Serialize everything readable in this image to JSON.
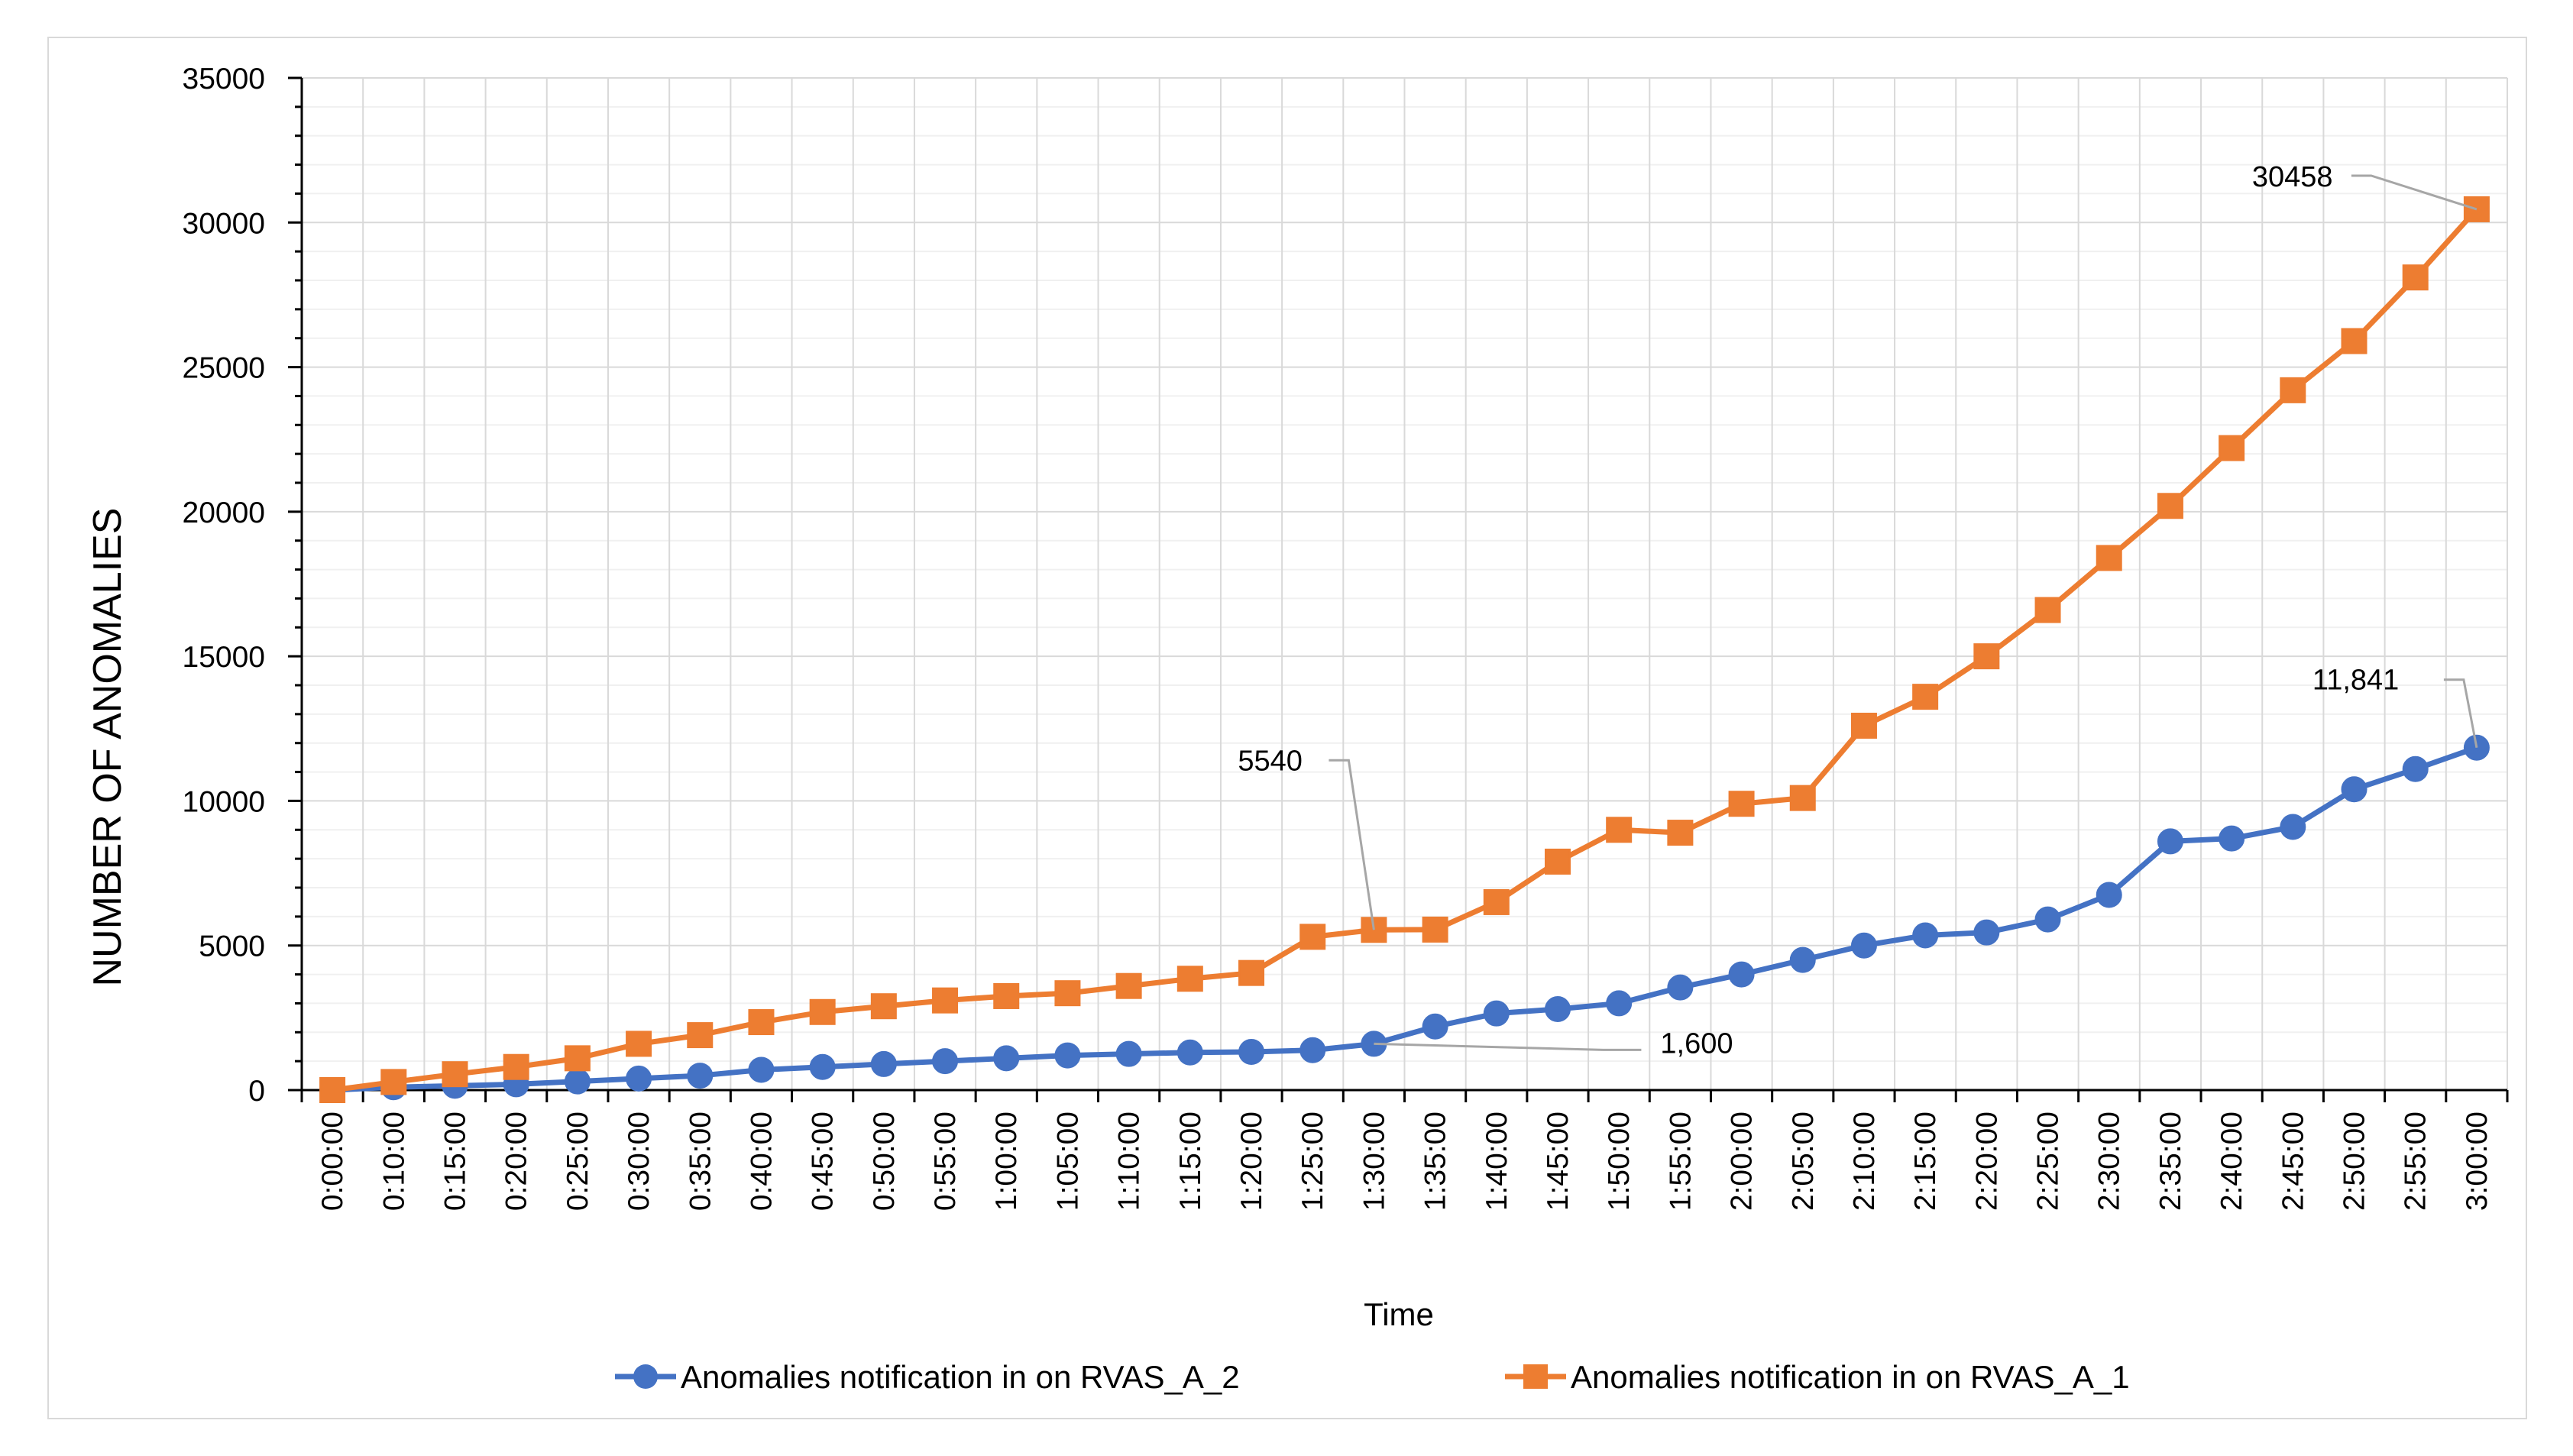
{
  "chart_data": {
    "type": "line",
    "title": "",
    "xlabel": "Time",
    "ylabel": "NUMBER OF ANOMALIES",
    "ylim": [
      0,
      35000
    ],
    "yticks": [
      "0",
      "5000",
      "10000",
      "15000",
      "20000",
      "25000",
      "30000",
      "35000"
    ],
    "categories": [
      "0:00:00",
      "0:10:00",
      "0:15:00",
      "0:20:00",
      "0:25:00",
      "0:30:00",
      "0:35:00",
      "0:40:00",
      "0:45:00",
      "0:50:00",
      "0:55:00",
      "1:00:00",
      "1:05:00",
      "1:10:00",
      "1:15:00",
      "1:20:00",
      "1:25:00",
      "1:30:00",
      "1:35:00",
      "1:40:00",
      "1:45:00",
      "1:50:00",
      "1:55:00",
      "2:00:00",
      "2:05:00",
      "2:10:00",
      "2:15:00",
      "2:20:00",
      "2:25:00",
      "2:30:00",
      "2:35:00",
      "2:40:00",
      "2:45:00",
      "2:50:00",
      "2:55:00",
      "3:00:00"
    ],
    "grid": true,
    "legend_position": "bottom",
    "series": [
      {
        "name": "Anomalies notification in on RVAS_A_2",
        "color": "#4472c4",
        "marker": "circle",
        "values": [
          0,
          100,
          150,
          200,
          300,
          400,
          500,
          700,
          800,
          900,
          1000,
          1100,
          1200,
          1250,
          1300,
          1320,
          1380,
          1600,
          2200,
          2650,
          2800,
          3000,
          3550,
          4000,
          4500,
          5000,
          5350,
          5450,
          5900,
          6750,
          8600,
          8700,
          9100,
          10400,
          11100,
          11841
        ]
      },
      {
        "name": "Anomalies notification in on RVAS_A_1",
        "color": "#ed7d31",
        "marker": "square",
        "values": [
          0,
          280,
          550,
          800,
          1100,
          1600,
          1900,
          2350,
          2700,
          2900,
          3100,
          3250,
          3350,
          3600,
          3850,
          4050,
          5300,
          5540,
          5550,
          6500,
          7900,
          9000,
          8900,
          9900,
          10100,
          12600,
          13600,
          15000,
          16600,
          18400,
          20200,
          22200,
          24200,
          25900,
          28100,
          30458
        ]
      }
    ],
    "annotations": [
      {
        "text": "30458",
        "series": 1,
        "index": 35
      },
      {
        "text": "5540",
        "series": 1,
        "index": 17
      },
      {
        "text": "11,841",
        "series": 0,
        "index": 35
      },
      {
        "text": "1,600",
        "series": 0,
        "index": 17
      }
    ]
  }
}
